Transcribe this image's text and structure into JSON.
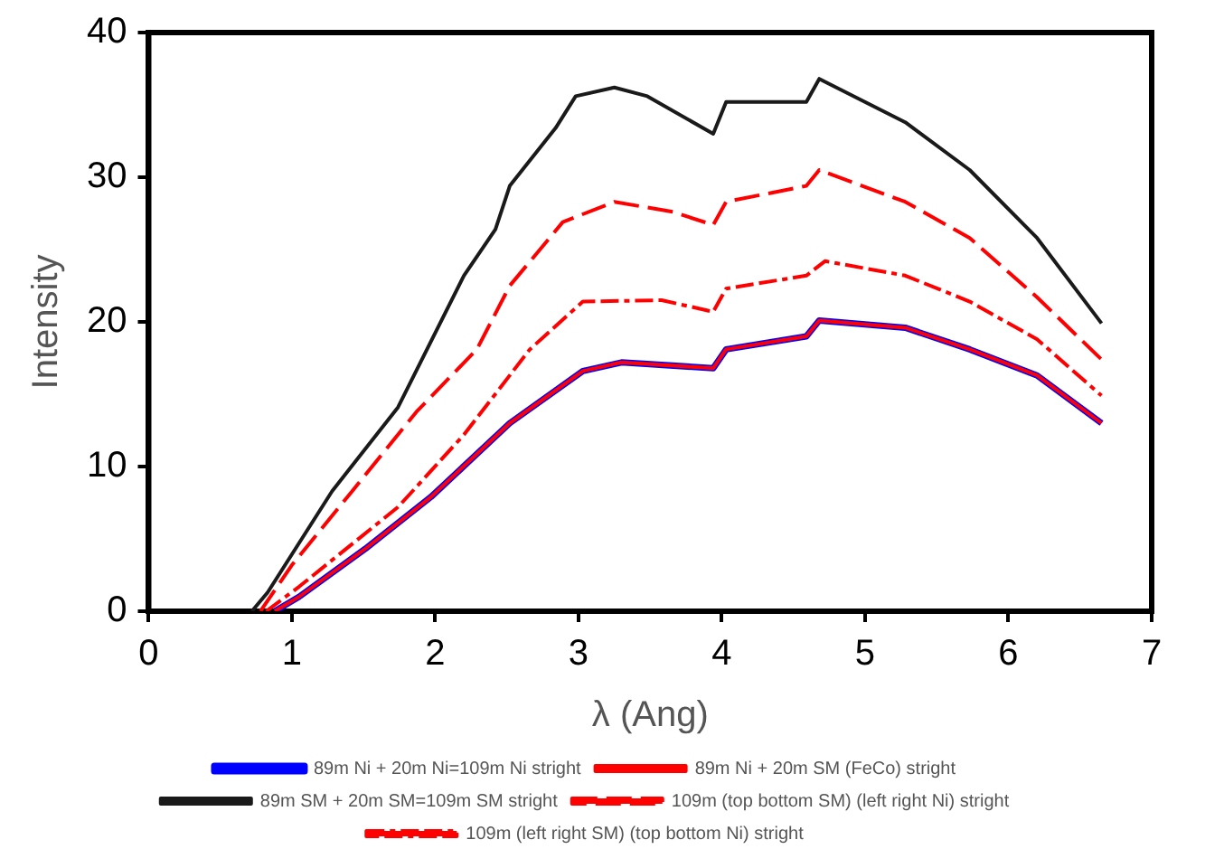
{
  "chart_data": {
    "type": "line",
    "xlabel": "λ (Ang)",
    "ylabel": "Intensity",
    "xlim": [
      0,
      7
    ],
    "xticks": [
      0,
      1,
      2,
      3,
      4,
      5,
      6,
      7
    ],
    "ylim": [
      0,
      40
    ],
    "yticks": [
      0,
      10,
      20,
      30,
      40
    ],
    "grid": false,
    "legend": "bottom",
    "marker": "none",
    "series": [
      {
        "name": "89m Ni + 20m Ni=109m Ni stright",
        "color": "#0000ff",
        "line_style": "solid",
        "x": [
          0.88,
          1.05,
          1.51,
          1.97,
          2.52,
          3.03,
          3.3,
          3.94,
          4.03,
          4.59,
          4.68,
          5.28,
          5.73,
          6.2,
          6.65
        ],
        "values": [
          0,
          1,
          4.3,
          7.9,
          13,
          16.6,
          17.2,
          16.8,
          18.1,
          19,
          20.1,
          19.6,
          18.1,
          16.3,
          13
        ]
      },
      {
        "name": "89m Ni + 20m SM (FeCo) stright",
        "color": "#ff0000",
        "line_style": "solid",
        "x": [
          0.88,
          1.05,
          1.51,
          1.97,
          2.52,
          3.03,
          3.3,
          3.94,
          4.03,
          4.59,
          4.68,
          5.28,
          5.73,
          6.2,
          6.65
        ],
        "values": [
          0,
          1,
          4.3,
          7.9,
          13,
          16.6,
          17.2,
          16.8,
          18.1,
          19,
          20.1,
          19.6,
          18.1,
          16.3,
          13
        ]
      },
      {
        "name": "89m SM + 20m SM=109m SM stright",
        "color": "#1a1a1a",
        "line_style": "solid",
        "x": [
          0.72,
          0.83,
          1.28,
          1.74,
          2.2,
          2.42,
          2.52,
          2.84,
          2.98,
          3.25,
          3.48,
          3.94,
          4.03,
          4.59,
          4.68,
          5.28,
          5.73,
          6.2,
          6.65
        ],
        "values": [
          0,
          1.3,
          8.3,
          14.1,
          23.2,
          26.4,
          29.4,
          33.4,
          35.6,
          36.2,
          35.6,
          33,
          35.2,
          35.2,
          36.8,
          33.8,
          30.5,
          25.8,
          19.9
        ]
      },
      {
        "name": "109m (top bottom SM) (left right Ni) stright",
        "color": "#ff0000",
        "line_style": "dashed",
        "x": [
          0.78,
          1.0,
          1.42,
          1.87,
          2.29,
          2.52,
          2.89,
          3.25,
          3.66,
          3.94,
          4.03,
          4.59,
          4.68,
          5.28,
          5.73,
          6.2,
          6.65
        ],
        "values": [
          0,
          3.2,
          8.3,
          13.8,
          18.1,
          22.5,
          26.9,
          28.3,
          27.6,
          26.7,
          28.3,
          29.4,
          30.5,
          28.3,
          25.8,
          21.7,
          17.4
        ]
      },
      {
        "name": "109m (left right SM) (top bottom Ni) stright",
        "color": "#ff0000",
        "line_style": "dotted",
        "x": [
          0.82,
          1.05,
          1.74,
          2.2,
          2.66,
          3.03,
          3.58,
          3.94,
          4.03,
          4.59,
          4.72,
          5.28,
          5.73,
          6.2,
          6.65
        ],
        "values": [
          0,
          1.7,
          7.2,
          12.2,
          18.1,
          21.4,
          21.5,
          20.7,
          22.3,
          23.2,
          24.2,
          23.2,
          21.4,
          18.8,
          14.9
        ]
      }
    ]
  }
}
